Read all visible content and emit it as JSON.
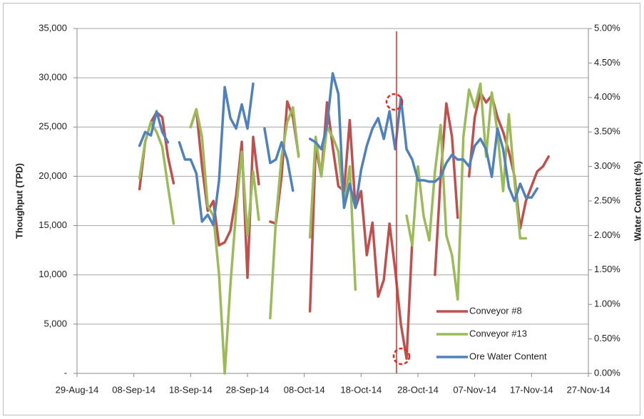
{
  "chart_data": {
    "type": "line",
    "ylabel": "Thoughput (TPD)",
    "y2label": "Water Content (%)",
    "xlim": [
      "2014-08-29",
      "2014-11-27"
    ],
    "xticks": [
      {
        "value": "2014-08-29",
        "label": "29-Aug-14"
      },
      {
        "value": "2014-09-08",
        "label": "08-Sep-14"
      },
      {
        "value": "2014-09-18",
        "label": "18-Sep-14"
      },
      {
        "value": "2014-09-28",
        "label": "28-Sep-14"
      },
      {
        "value": "2014-10-08",
        "label": "08-Oct-14"
      },
      {
        "value": "2014-10-18",
        "label": "18-Oct-14"
      },
      {
        "value": "2014-10-28",
        "label": "28-Oct-14"
      },
      {
        "value": "2014-11-07",
        "label": "07-Nov-14"
      },
      {
        "value": "2014-11-17",
        "label": "17-Nov-14"
      },
      {
        "value": "2014-11-27",
        "label": "27-Nov-14"
      }
    ],
    "ylim": [
      0,
      35000
    ],
    "yticks": [
      {
        "value": 0,
        "label": "-"
      },
      {
        "value": 5000,
        "label": "5,000"
      },
      {
        "value": 10000,
        "label": "10,000"
      },
      {
        "value": 15000,
        "label": "15,000"
      },
      {
        "value": 20000,
        "label": "20,000"
      },
      {
        "value": 25000,
        "label": "25,000"
      },
      {
        "value": 30000,
        "label": "30,000"
      },
      {
        "value": 35000,
        "label": "35,000"
      }
    ],
    "y2lim": [
      0,
      5
    ],
    "y2ticks": [
      {
        "value": 0,
        "label": "0.00%"
      },
      {
        "value": 0.5,
        "label": "0.50%"
      },
      {
        "value": 1,
        "label": "1.00%"
      },
      {
        "value": 1.5,
        "label": "1.50%"
      },
      {
        "value": 2,
        "label": "2.00%"
      },
      {
        "value": 2.5,
        "label": "2.50%"
      },
      {
        "value": 3,
        "label": "3.00%"
      },
      {
        "value": 3.5,
        "label": "3.50%"
      },
      {
        "value": 4,
        "label": "4.00%"
      },
      {
        "value": 4.5,
        "label": "4.50%"
      },
      {
        "value": 5,
        "label": "5.00%"
      }
    ],
    "grid": true,
    "legend": "lower right",
    "x": [
      "2014-09-09",
      "2014-09-10",
      "2014-09-11",
      "2014-09-12",
      "2014-09-13",
      "2014-09-14",
      "2014-09-15",
      "2014-09-16",
      "2014-09-17",
      "2014-09-18",
      "2014-09-19",
      "2014-09-20",
      "2014-09-21",
      "2014-09-22",
      "2014-09-23",
      "2014-09-24",
      "2014-09-25",
      "2014-09-26",
      "2014-09-27",
      "2014-09-28",
      "2014-09-29",
      "2014-09-30",
      "2014-10-01",
      "2014-10-02",
      "2014-10-03",
      "2014-10-04",
      "2014-10-05",
      "2014-10-06",
      "2014-10-07",
      "2014-10-08",
      "2014-10-09",
      "2014-10-10",
      "2014-10-11",
      "2014-10-12",
      "2014-10-13",
      "2014-10-14",
      "2014-10-15",
      "2014-10-16",
      "2014-10-17",
      "2014-10-18",
      "2014-10-19",
      "2014-10-20",
      "2014-10-21",
      "2014-10-22",
      "2014-10-23",
      "2014-10-24",
      "2014-10-25",
      "2014-10-26",
      "2014-10-27",
      "2014-10-28",
      "2014-10-29",
      "2014-10-30",
      "2014-10-31",
      "2014-11-01",
      "2014-11-02",
      "2014-11-03",
      "2014-11-04",
      "2014-11-05",
      "2014-11-06",
      "2014-11-07",
      "2014-11-08",
      "2014-11-09",
      "2014-11-10",
      "2014-11-11",
      "2014-11-12",
      "2014-11-13",
      "2014-11-14",
      "2014-11-15",
      "2014-11-16",
      "2014-11-17",
      "2014-11-18",
      "2014-11-19",
      "2014-11-20"
    ],
    "series": [
      {
        "name": "Conveyor #8",
        "color": "#c0504d",
        "values": [
          18700,
          23500,
          25500,
          26500,
          26000,
          22000,
          19300,
          null,
          null,
          25000,
          26800,
          21000,
          16500,
          17500,
          13000,
          13300,
          14500,
          18000,
          23500,
          9700,
          24000,
          19200,
          null,
          15400,
          15200,
          20000,
          27600,
          26000,
          22100,
          null,
          6300,
          23000,
          20000,
          27500,
          23000,
          19000,
          18500,
          25700,
          16800,
          18500,
          12000,
          15300,
          7800,
          9500,
          15200,
          10500,
          5000,
          1500,
          13500,
          null,
          null,
          null,
          10000,
          20000,
          27400,
          24000,
          15800,
          null,
          20000,
          26000,
          28500,
          27500,
          28200,
          26000,
          24500,
          22500,
          20000,
          14700,
          17500,
          19000,
          20500,
          21000,
          22000
        ]
      },
      {
        "name": "Conveyor #13",
        "color": "#9bbb59",
        "values": [
          19800,
          23500,
          25500,
          24500,
          23000,
          19000,
          15200,
          null,
          null,
          25000,
          26800,
          24000,
          17000,
          16000,
          10000,
          0,
          9000,
          16500,
          22500,
          14000,
          20500,
          15600,
          null,
          5600,
          15500,
          22000,
          25500,
          27000,
          22000,
          null,
          13800,
          24000,
          20000,
          25000,
          24000,
          22500,
          17000,
          21000,
          8500,
          null,
          null,
          null,
          null,
          null,
          null,
          null,
          null,
          16000,
          13000,
          21000,
          16000,
          13500,
          20500,
          25200,
          14000,
          12000,
          7500,
          24000,
          28800,
          27000,
          29400,
          22000,
          28500,
          24500,
          18500,
          26300,
          19500,
          13700,
          13700,
          null,
          null,
          null,
          null
        ]
      },
      {
        "name": "Ore Water Content",
        "color": "#4f81bd",
        "axis": "y2",
        "values": [
          3.3,
          3.5,
          3.45,
          3.8,
          3.5,
          3.35,
          null,
          3.35,
          3.1,
          3.1,
          2.9,
          2.2,
          2.3,
          2.15,
          2.8,
          4.15,
          3.7,
          3.55,
          3.9,
          3.55,
          4.2,
          null,
          3.55,
          3.05,
          3.1,
          3.35,
          3.1,
          2.65,
          null,
          null,
          3.4,
          3.35,
          3.25,
          3.6,
          4.35,
          4.05,
          2.4,
          2.75,
          2.4,
          2.95,
          3.3,
          3.55,
          3.7,
          3.4,
          3.8,
          3.25,
          4.0,
          3.25,
          3.1,
          2.8,
          2.8,
          2.78,
          2.78,
          2.85,
          3.05,
          3.17,
          3.1,
          3.1,
          3.0,
          3.3,
          3.4,
          3.25,
          2.85,
          3.55,
          3.25,
          2.7,
          2.5,
          2.75,
          2.55,
          2.55,
          2.68,
          null,
          null
        ]
      }
    ]
  }
}
